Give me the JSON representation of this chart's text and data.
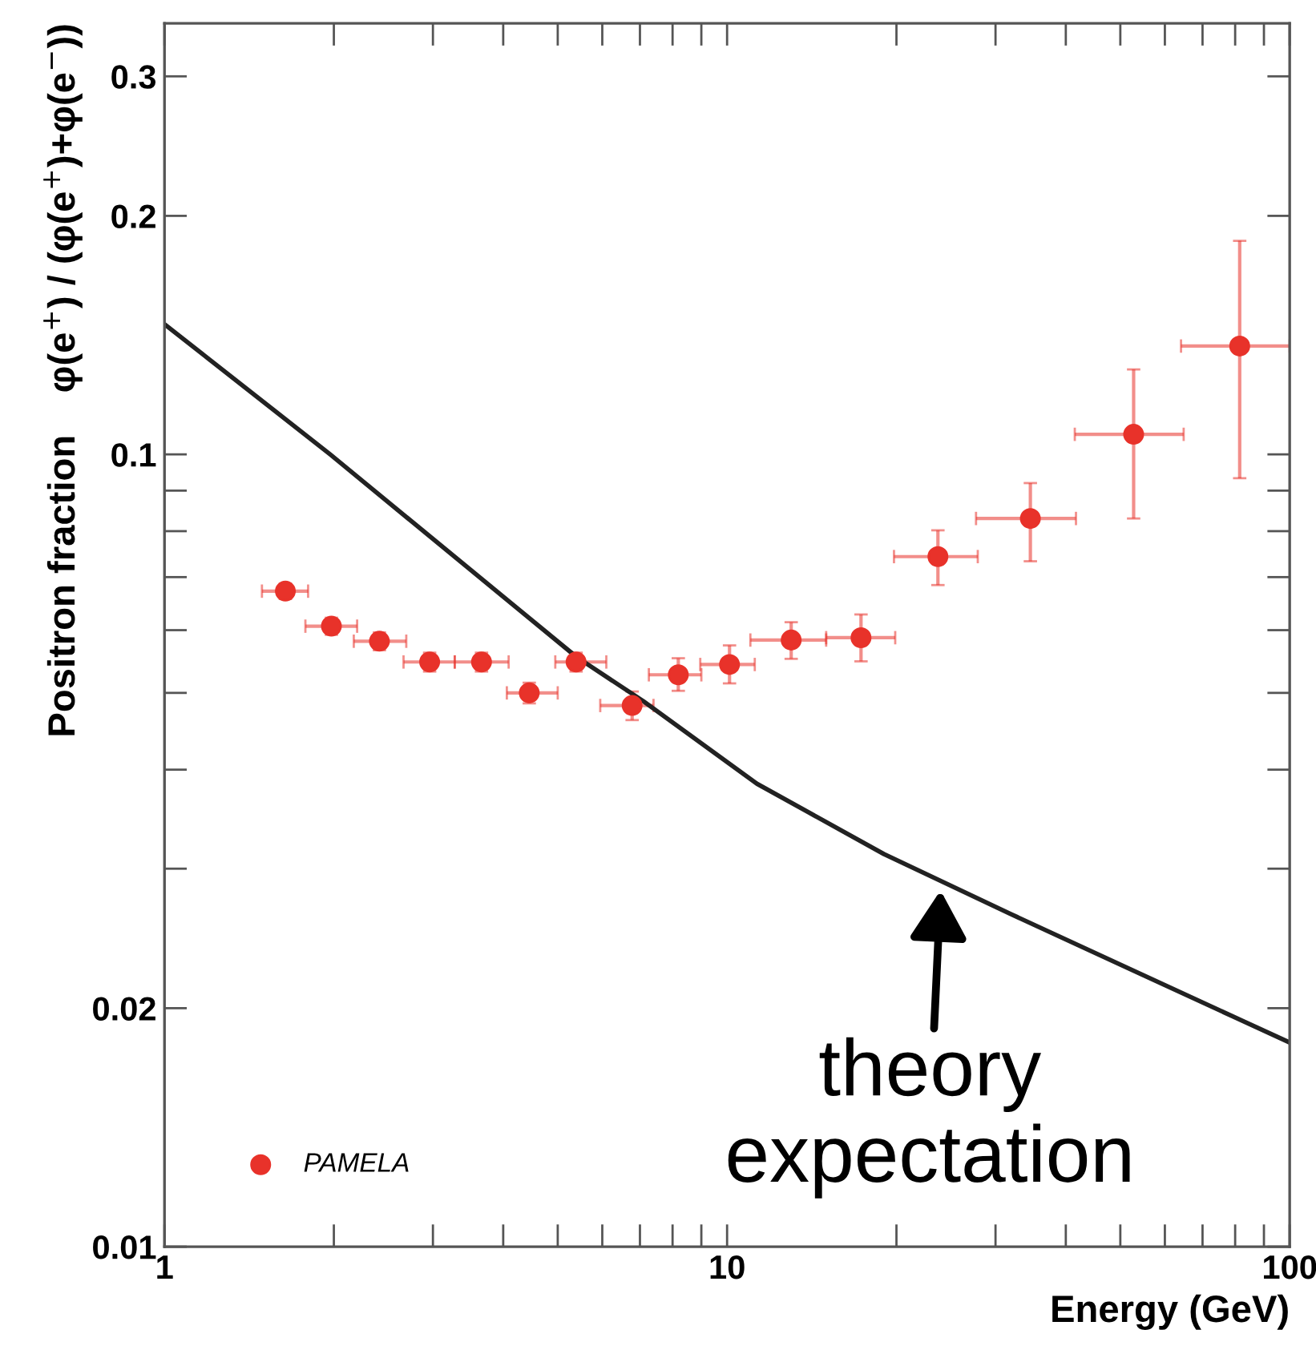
{
  "chart_data": {
    "type": "scatter",
    "xlabel": "Energy (GeV)",
    "ylabel": "Positron fraction    φ(e$^{+}$) / (φ(e$^{+}$)+φ(e$^{−}$))",
    "log": "xy",
    "xlim": [
      1,
      100
    ],
    "ylim": [
      0.01,
      0.35
    ],
    "xticks": [
      1,
      {
        "value": 2,
        "label": null
      },
      {
        "value": 3,
        "label": null
      },
      {
        "value": 4,
        "label": null
      },
      {
        "value": 5,
        "label": null
      },
      {
        "value": 6,
        "label": null
      },
      {
        "value": 7,
        "label": null
      },
      {
        "value": 8,
        "label": null
      },
      {
        "value": 9,
        "label": null
      },
      10,
      {
        "value": 20,
        "label": null
      },
      {
        "value": 30,
        "label": null
      },
      {
        "value": 40,
        "label": null
      },
      {
        "value": 50,
        "label": null
      },
      {
        "value": 60,
        "label": null
      },
      {
        "value": 70,
        "label": null
      },
      {
        "value": 80,
        "label": null
      },
      {
        "value": 90,
        "label": null
      },
      100
    ],
    "yticks": [
      0.01,
      0.02,
      {
        "value": 0.03,
        "label": null
      },
      {
        "value": 0.04,
        "label": null
      },
      {
        "value": 0.05,
        "label": null
      },
      {
        "value": 0.06,
        "label": null
      },
      {
        "value": 0.07,
        "label": null
      },
      {
        "value": 0.08,
        "label": null
      },
      {
        "value": 0.09,
        "label": null
      },
      0.1,
      0.2,
      0.3
    ],
    "grid": false,
    "legend": "bottom left",
    "series": [
      {
        "name": "PAMELA",
        "color": "#e8322a",
        "marker": "circle",
        "x": [
          1.64,
          1.98,
          2.41,
          2.96,
          3.66,
          4.45,
          5.39,
          6.78,
          8.19,
          10.1,
          13.0,
          17.3,
          23.7,
          34.6,
          52.8,
          81.5
        ],
        "values": [
          0.0672,
          0.0607,
          0.0581,
          0.0547,
          0.0547,
          0.05,
          0.0547,
          0.0482,
          0.0527,
          0.0543,
          0.0583,
          0.0587,
          0.0743,
          0.083,
          0.106,
          0.137
        ],
        "errors": [
          0.0015,
          0.0015,
          0.0015,
          0.0015,
          0.0015,
          0.0015,
          0.0015,
          0.002,
          [
            0.0503,
            0.0553
          ],
          [
            0.0514,
            0.0574
          ],
          [
            0.0552,
            0.0614
          ],
          [
            0.0548,
            0.0628
          ],
          [
            0.0684,
            0.0802
          ],
          [
            0.0733,
            0.092
          ],
          [
            0.083,
            0.128
          ],
          [
            0.0933,
            0.186
          ]
        ],
        "xerrors": [
          [
            1.49,
            1.8
          ],
          [
            1.78,
            2.2
          ],
          [
            2.17,
            2.69
          ],
          [
            2.66,
            3.28
          ],
          [
            3.28,
            4.09
          ],
          [
            4.06,
            5.0
          ],
          [
            4.95,
            6.1
          ],
          [
            5.95,
            7.4
          ],
          [
            7.26,
            9.0
          ],
          [
            8.96,
            11.2
          ],
          [
            11.0,
            15.0
          ],
          [
            15.0,
            19.9
          ],
          [
            19.8,
            27.9
          ],
          [
            27.7,
            41.7
          ],
          [
            41.5,
            64.8
          ],
          [
            64.1,
            100
          ]
        ]
      },
      {
        "type": "line",
        "color": "#222222",
        "line_style": "solid",
        "x": [
          1,
          1.97,
          5.4,
          7.1,
          11.3,
          19.0,
          31.9,
          53.5,
          100
        ],
        "values": [
          0.146,
          0.1,
          0.0555,
          0.0488,
          0.0384,
          0.0313,
          0.0263,
          0.0222,
          0.0181
        ]
      }
    ],
    "annotations": [
      {
        "text": "theory\nexpectation",
        "x": 24,
        "y": 0.0289
      }
    ]
  }
}
